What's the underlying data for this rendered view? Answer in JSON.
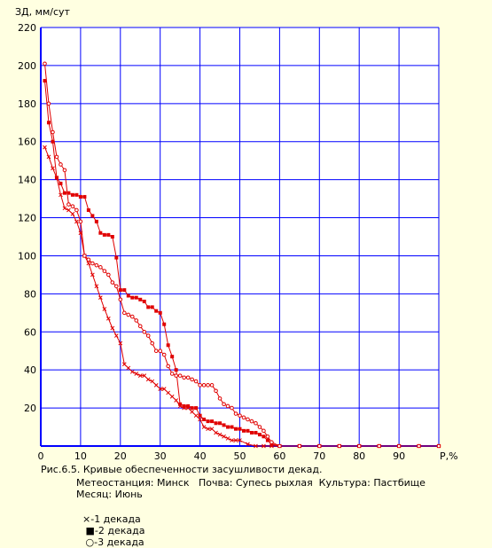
{
  "chart_data": {
    "type": "line",
    "ylabel": "ЗД, мм/сут",
    "xlabel": "P,%",
    "xlim": [
      0,
      100
    ],
    "ylim": [
      0,
      220
    ],
    "xticks": [
      "0",
      "10",
      "20",
      "30",
      "40",
      "50",
      "60",
      "70",
      "80",
      "90"
    ],
    "yticks": [
      "20",
      "40",
      "60",
      "80",
      "100",
      "120",
      "140",
      "160",
      "180",
      "200",
      "220"
    ],
    "grid": true,
    "series": [
      {
        "name": "-1 декада",
        "marker": "x",
        "color": "#e00000",
        "x": [
          1,
          2,
          3,
          4,
          5,
          6,
          7,
          8,
          9,
          10,
          11,
          12,
          13,
          14,
          15,
          16,
          17,
          18,
          19,
          20,
          21,
          22,
          23,
          24,
          25,
          26,
          27,
          28,
          29,
          30,
          31,
          32,
          33,
          34,
          35,
          36,
          37,
          38,
          39,
          40,
          41,
          42,
          43,
          44,
          45,
          46,
          47,
          48,
          49,
          50,
          52,
          54,
          56,
          58,
          60,
          65,
          70,
          75,
          80,
          85,
          90,
          95,
          100
        ],
        "y": [
          157,
          152,
          146,
          141,
          132,
          125,
          124,
          122,
          118,
          112,
          100,
          96,
          90,
          84,
          78,
          72,
          67,
          62,
          58,
          54,
          43,
          41,
          39,
          38,
          37,
          37,
          35,
          34,
          32,
          30,
          30,
          28,
          26,
          24,
          21,
          20,
          20,
          18,
          16,
          14,
          10,
          9,
          9,
          7,
          6,
          5,
          4,
          3,
          3,
          3,
          1,
          0,
          0,
          0,
          0,
          0,
          0,
          0,
          0,
          0,
          0,
          0,
          0
        ]
      },
      {
        "name": "-2 декада",
        "marker": "square",
        "color": "#e00000",
        "x": [
          1,
          2,
          3,
          4,
          5,
          6,
          7,
          8,
          9,
          10,
          11,
          12,
          13,
          14,
          15,
          16,
          17,
          18,
          19,
          20,
          21,
          22,
          23,
          24,
          25,
          26,
          27,
          28,
          29,
          30,
          31,
          32,
          33,
          34,
          35,
          36,
          37,
          38,
          39,
          40,
          41,
          42,
          43,
          44,
          45,
          46,
          47,
          48,
          49,
          50,
          51,
          52,
          53,
          54,
          55,
          56,
          57,
          58,
          60,
          65,
          70,
          75,
          80,
          85,
          90,
          95,
          100
        ],
        "y": [
          192,
          170,
          160,
          141,
          138,
          133,
          133,
          132,
          132,
          131,
          131,
          124,
          121,
          118,
          112,
          111,
          111,
          110,
          99,
          82,
          82,
          79,
          78,
          78,
          77,
          76,
          73,
          73,
          71,
          70,
          64,
          53,
          47,
          40,
          22,
          21,
          21,
          20,
          20,
          16,
          14,
          13,
          13,
          12,
          12,
          11,
          10,
          10,
          9,
          9,
          8,
          8,
          7,
          7,
          6,
          5,
          3,
          1,
          0,
          0,
          0,
          0,
          0,
          0,
          0,
          0,
          0
        ]
      },
      {
        "name": "-3 декада",
        "marker": "circle",
        "color": "#e00000",
        "x": [
          1,
          2,
          3,
          4,
          5,
          6,
          7,
          8,
          9,
          10,
          11,
          12,
          13,
          14,
          15,
          16,
          17,
          18,
          19,
          20,
          21,
          22,
          23,
          24,
          25,
          26,
          27,
          28,
          29,
          30,
          31,
          32,
          33,
          34,
          35,
          36,
          37,
          38,
          39,
          40,
          41,
          42,
          43,
          44,
          45,
          46,
          47,
          48,
          49,
          50,
          51,
          52,
          53,
          54,
          55,
          56,
          57,
          58,
          60,
          65,
          70,
          75,
          80,
          85,
          90,
          95,
          100
        ],
        "y": [
          201,
          180,
          165,
          152,
          148,
          145,
          127,
          126,
          124,
          118,
          100,
          98,
          96,
          95,
          94,
          92,
          90,
          86,
          84,
          77,
          70,
          69,
          68,
          66,
          63,
          60,
          58,
          54,
          50,
          50,
          48,
          42,
          38,
          37,
          37,
          36,
          36,
          35,
          34,
          32,
          32,
          32,
          32,
          29,
          25,
          22,
          21,
          20,
          17,
          16,
          15,
          14,
          13,
          12,
          10,
          8,
          5,
          2,
          0,
          0,
          0,
          0,
          0,
          0,
          0,
          0,
          0
        ]
      }
    ]
  },
  "caption": {
    "line1": "Рис.6.5. Кривые обеспеченности засушливости декад.",
    "line2": "Метеостанция: Минск   Почва: Супесь рыхлая  Культура: Пастбище",
    "line3": "Месяц: Июнь",
    "legend_items": [
      {
        "marker": "×",
        "text": "-1 декада"
      },
      {
        "marker": "■",
        "text": "-2 декада"
      },
      {
        "marker": "○",
        "text": "-3 декада"
      }
    ]
  }
}
